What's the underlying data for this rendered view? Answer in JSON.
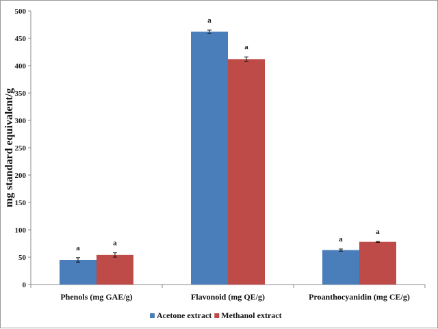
{
  "chart_data": {
    "type": "bar",
    "categories": [
      "Phenols (mg GAE/g)",
      "Flavonoid (mg QE/g)",
      "Proanthocyanidin (mg CE/g)"
    ],
    "series": [
      {
        "name": "Acetone extract",
        "color": "#4a7ebb",
        "values": [
          45,
          462,
          63
        ],
        "errors": [
          4,
          3,
          2
        ],
        "labels": [
          "a",
          "a",
          "a"
        ]
      },
      {
        "name": "Methanol extract",
        "color": "#be4b48",
        "values": [
          54,
          412,
          78
        ],
        "errors": [
          4,
          4,
          1
        ],
        "labels": [
          "a",
          "a",
          "a"
        ]
      }
    ],
    "title": "",
    "xlabel": "",
    "ylabel": "mg standard equivalent/g",
    "ylim": [
      0,
      500
    ],
    "yticks": [
      0,
      50,
      100,
      150,
      200,
      250,
      300,
      350,
      400,
      450,
      500
    ],
    "grid": false,
    "legend_position": "bottom"
  }
}
